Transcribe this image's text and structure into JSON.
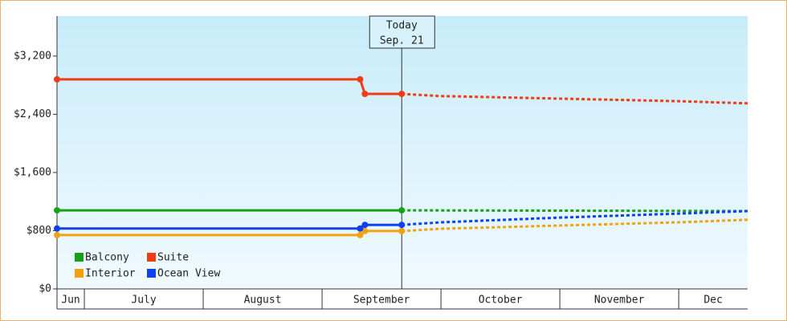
{
  "chart_data": {
    "type": "line",
    "xlim": [
      6.77,
      12.58
    ],
    "xticks": [
      7,
      8,
      9,
      10,
      11,
      12
    ],
    "categories": [
      "Jun",
      "July",
      "August",
      "September",
      "October",
      "November",
      "Dec"
    ],
    "ylim": [
      0,
      3750
    ],
    "yticks": [
      {
        "value": 0,
        "label": "$0"
      },
      {
        "value": 800,
        "label": "$800"
      },
      {
        "value": 1600,
        "label": "$1,600"
      },
      {
        "value": 2400,
        "label": "$2,400"
      },
      {
        "value": 3200,
        "label": "$3,200"
      }
    ],
    "today": {
      "value": 9.67,
      "label": [
        "Today",
        "Sep. 21"
      ]
    },
    "series": [
      {
        "name": "Balcony",
        "color": "#18a018",
        "x": [
          6.77,
          9.67,
          12.58
        ],
        "values": [
          1080,
          1080,
          1070
        ]
      },
      {
        "name": "Suite",
        "color": "#f03c14",
        "x": [
          6.77,
          9.32,
          9.36,
          9.67,
          10,
          11,
          12,
          12.58
        ],
        "values": [
          2880,
          2880,
          2680,
          2680,
          2650,
          2615,
          2580,
          2550
        ]
      },
      {
        "name": "Interior",
        "color": "#f5a010",
        "x": [
          6.77,
          9.32,
          9.36,
          9.67,
          10,
          11,
          12,
          12.58
        ],
        "values": [
          740,
          740,
          795,
          795,
          827,
          871,
          915,
          950
        ]
      },
      {
        "name": "Ocean View",
        "color": "#1040f0",
        "x": [
          6.77,
          9.32,
          9.36,
          9.67,
          10,
          11,
          12,
          12.58
        ],
        "values": [
          830,
          830,
          880,
          880,
          915,
          980,
          1035,
          1070
        ]
      }
    ],
    "legend": "lower-left"
  }
}
